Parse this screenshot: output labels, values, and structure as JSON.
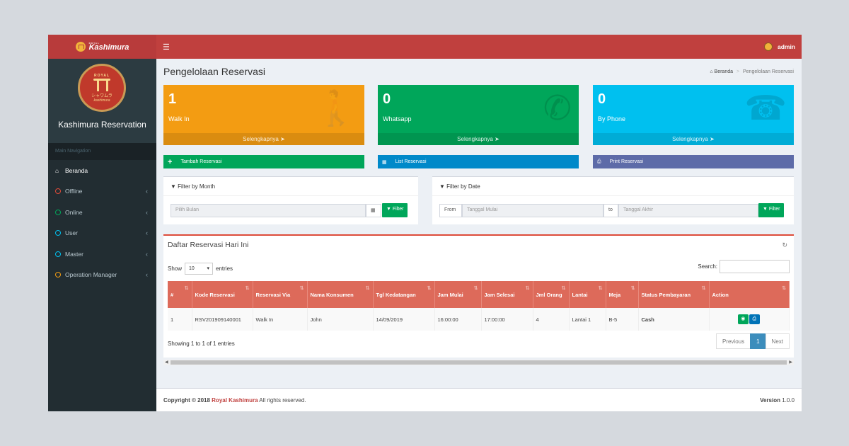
{
  "sidebar": {
    "logo_small": "ROYAL",
    "logo_text": "Kashimura",
    "emblem": {
      "royal": "ROYAL",
      "kana": "シャワムラ",
      "brand": "kashimura"
    },
    "site_title": "Kashimura Reservation",
    "nav_header": "Main Navigation",
    "items": [
      {
        "label": "Beranda",
        "icon": "home-icon"
      },
      {
        "label": "Offline",
        "icon": "circle-icon",
        "color": "#dd4b39"
      },
      {
        "label": "Online",
        "icon": "circle-icon",
        "color": "#00a65a"
      },
      {
        "label": "User",
        "icon": "circle-icon",
        "color": "#00c0ef"
      },
      {
        "label": "Master",
        "icon": "circle-icon",
        "color": "#00c0ef"
      },
      {
        "label": "Operation Manager",
        "icon": "circle-icon",
        "color": "#f39c12"
      }
    ]
  },
  "topbar": {
    "user": "admin"
  },
  "page": {
    "title": "Pengelolaan Reservasi",
    "breadcrumb": {
      "home": "Beranda",
      "current": "Pengelolaan Reservasi"
    }
  },
  "stats": [
    {
      "value": "1",
      "label": "Walk In",
      "footer": "Selengkapnya",
      "color": "#f39c12"
    },
    {
      "value": "0",
      "label": "Whatsapp",
      "footer": "Selengkapnya",
      "color": "#00a65a"
    },
    {
      "value": "0",
      "label": "By Phone",
      "footer": "Selengkapnya",
      "color": "#00c0ef"
    }
  ],
  "actions": {
    "add": "Tambah Reservasi",
    "list": "List Reservasi",
    "print": "Print Reservasi"
  },
  "filter_month": {
    "title": "Filter by Month",
    "placeholder": "Pilih Bulan",
    "button": "Filter"
  },
  "filter_date": {
    "title": "Filter by Date",
    "from": "From",
    "start_placeholder": "Tanggal Mulai",
    "to": "to",
    "end_placeholder": "Tanggal Akhir",
    "button": "Filter"
  },
  "table": {
    "title": "Daftar Reservasi Hari Ini",
    "show": "Show",
    "entries_value": "10",
    "entries": "entries",
    "search": "Search:",
    "columns": [
      "#",
      "Kode Reservasi",
      "Reservasi Via",
      "Nama Konsumen",
      "Tgl Kedatangan",
      "Jam Mulai",
      "Jam Selesai",
      "Jml Orang",
      "Lantai",
      "Meja",
      "Status Pembayaran",
      "Action"
    ],
    "rows": [
      [
        "1",
        "RSV201909140001",
        "Walk In",
        "John",
        "14/09/2019",
        "16:00:00",
        "17:00:00",
        "4",
        "Lantai 1",
        "B-5",
        "Cash"
      ]
    ],
    "info": "Showing 1 to 1 of 1 entries",
    "pager": {
      "prev": "Previous",
      "page": "1",
      "next": "Next"
    }
  },
  "footer": {
    "copyright": "Copyright © 2018",
    "brand": "Royal Kashimura",
    "rights": "All rights reserved.",
    "version_label": "Version",
    "version": "1.0.0"
  }
}
